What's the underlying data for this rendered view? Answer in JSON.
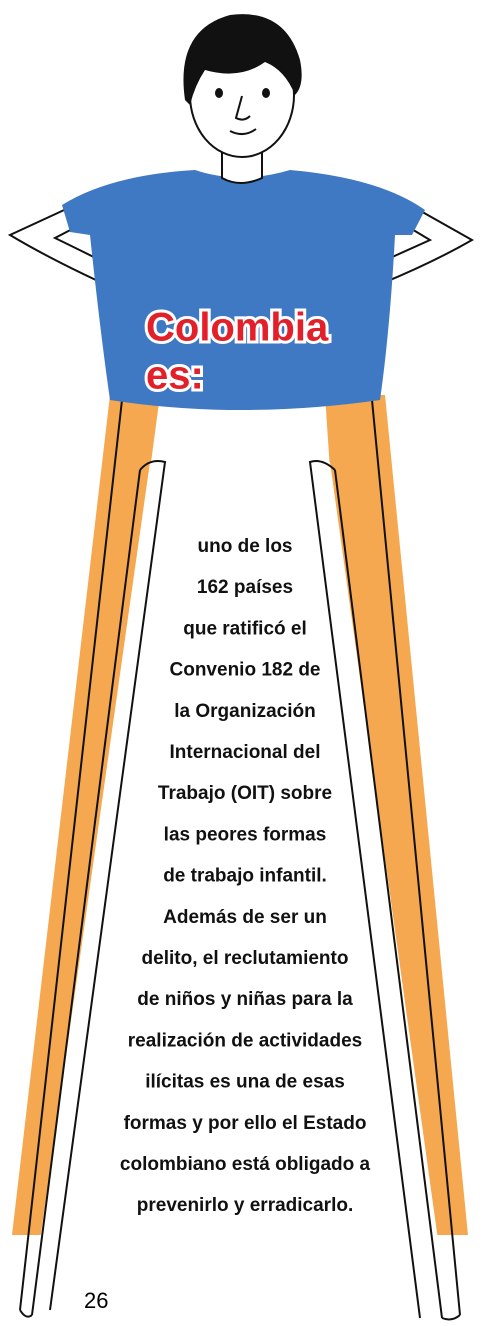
{
  "heading": [
    "Colombia",
    "es:"
  ],
  "body": [
    "uno de los",
    "162 países",
    "que ratificó el",
    "Convenio 182 de",
    "la Organización",
    "Internacional del",
    "Trabajo (OIT) sobre",
    "las peores formas",
    "de trabajo infantil.",
    "Además de ser un",
    "delito, el reclutamiento",
    "de niños y niñas para la",
    "realización de actividades",
    "ilícitas es una de esas",
    "formas y por ello el Estado",
    "colombiano está obligado a",
    "prevenirlo y erradicarlo."
  ],
  "page_number": "26"
}
